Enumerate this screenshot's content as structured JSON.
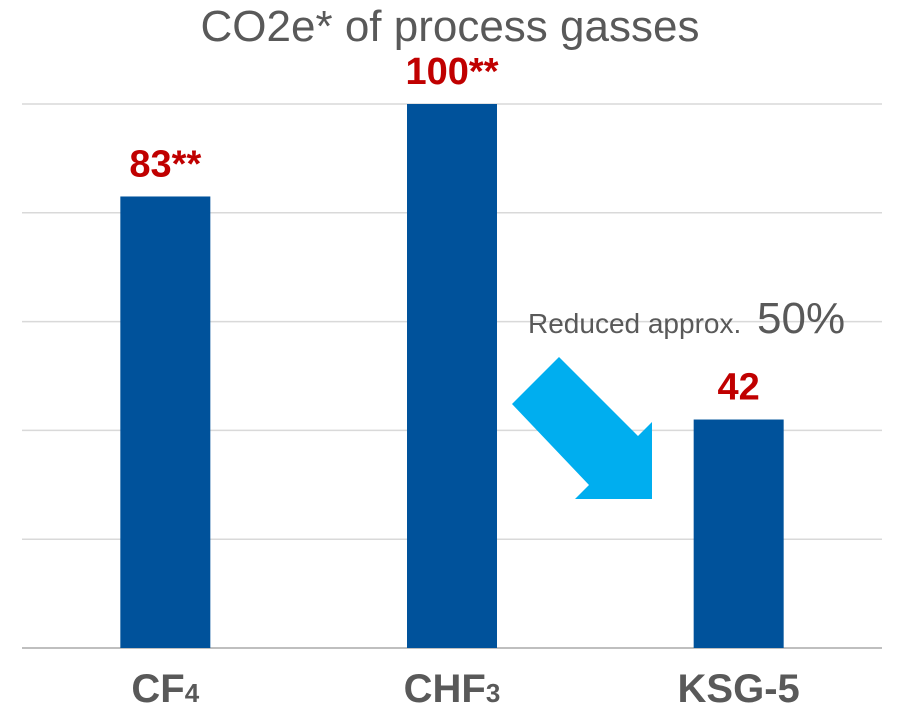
{
  "chart_data": {
    "type": "bar",
    "title": "CO2e* of process gasses",
    "categories": [
      {
        "main": "CF",
        "sub": "4"
      },
      {
        "main": "CHF",
        "sub": "3"
      },
      {
        "main": "KSG-5",
        "sub": ""
      }
    ],
    "values": [
      83,
      100,
      42
    ],
    "value_labels": [
      "83**",
      "100**",
      "42"
    ],
    "ylim": [
      0,
      100
    ],
    "grid": true,
    "gridline_count": 6,
    "bar_color": "#00529b",
    "value_label_color": "#c00000",
    "annotation": {
      "text": "Reduced approx.",
      "emphasis": "50%",
      "arrow_color": "#00aeef"
    }
  }
}
